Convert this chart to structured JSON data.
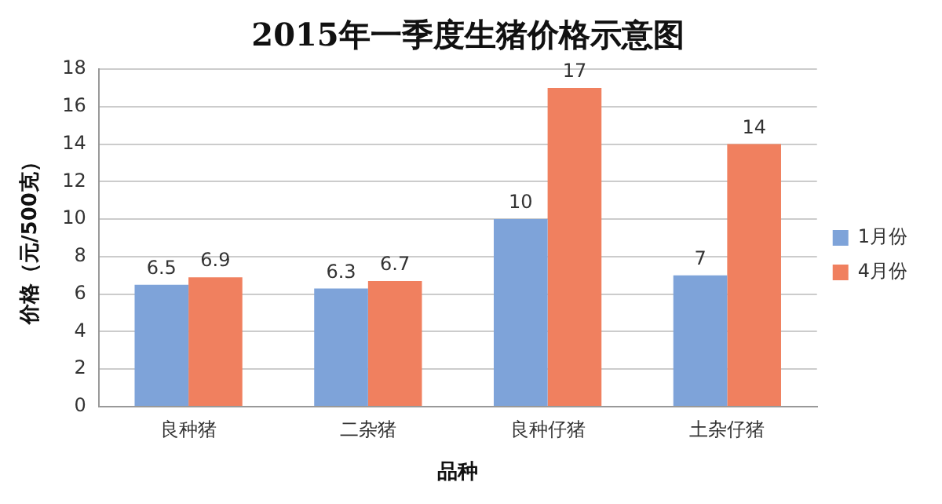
{
  "chart_data": {
    "type": "bar",
    "title": "2015年一季度生猪价格示意图",
    "xlabel": "品种",
    "ylabel": "价格（元/500克）",
    "categories": [
      "良种猪",
      "二杂猪",
      "良种仔猪",
      "土杂仔猪"
    ],
    "series": [
      {
        "name": "1月份",
        "color": "#7ea3d9",
        "values": [
          6.5,
          6.3,
          10,
          7
        ]
      },
      {
        "name": "4月份",
        "color": "#f0805f",
        "values": [
          6.9,
          6.7,
          17,
          14
        ]
      }
    ],
    "ylim": [
      0,
      18
    ],
    "yticks": [
      0,
      2,
      4,
      6,
      8,
      10,
      12,
      14,
      16,
      18
    ],
    "grid": "y",
    "legend": "right",
    "data_labels": true
  }
}
